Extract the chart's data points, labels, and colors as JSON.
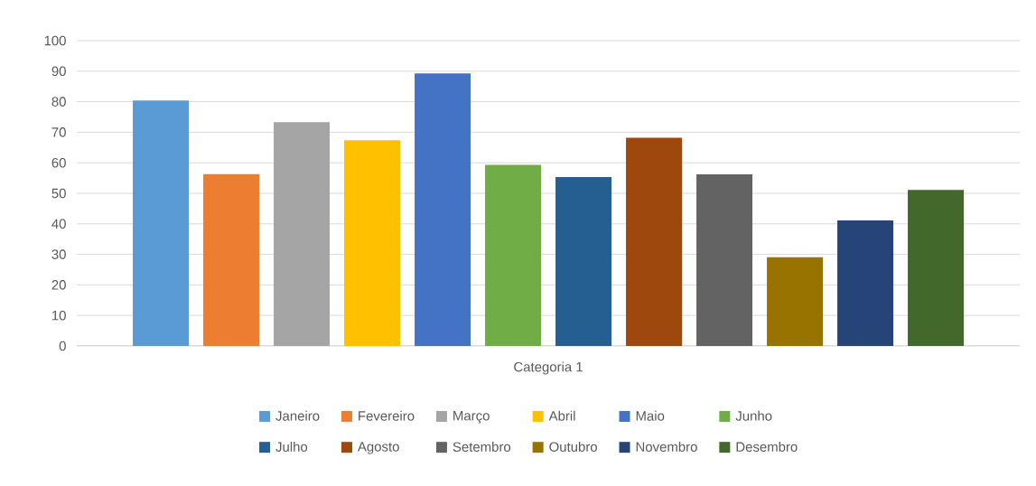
{
  "chart_data": {
    "type": "bar",
    "categories": [
      "Categoria 1"
    ],
    "series": [
      {
        "name": "Janeiro",
        "color": "#5b9bd5",
        "values": [
          80.4
        ]
      },
      {
        "name": "Fevereiro",
        "color": "#ed7d31",
        "values": [
          56.3
        ]
      },
      {
        "name": "Março",
        "color": "#a5a5a5",
        "values": [
          73.3
        ]
      },
      {
        "name": "Abril",
        "color": "#ffc000",
        "values": [
          67.4
        ]
      },
      {
        "name": "Maio",
        "color": "#4472c4",
        "values": [
          89.3
        ]
      },
      {
        "name": "Junho",
        "color": "#70ad47",
        "values": [
          59.3
        ]
      },
      {
        "name": "Julho",
        "color": "#255e91",
        "values": [
          55.3
        ]
      },
      {
        "name": "Agosto",
        "color": "#9e480e",
        "values": [
          68.2
        ]
      },
      {
        "name": "Setembro",
        "color": "#636363",
        "values": [
          56.2
        ]
      },
      {
        "name": "Outubro",
        "color": "#997300",
        "values": [
          29.1
        ]
      },
      {
        "name": "Novembro",
        "color": "#264478",
        "values": [
          41.1
        ]
      },
      {
        "name": "Desembro",
        "color": "#43682b",
        "values": [
          51.1
        ]
      }
    ],
    "ylim": [
      0,
      100
    ],
    "yticks": [
      0,
      10,
      20,
      30,
      40,
      50,
      60,
      70,
      80,
      90,
      100
    ],
    "grid": "y",
    "legend": "bottom"
  }
}
